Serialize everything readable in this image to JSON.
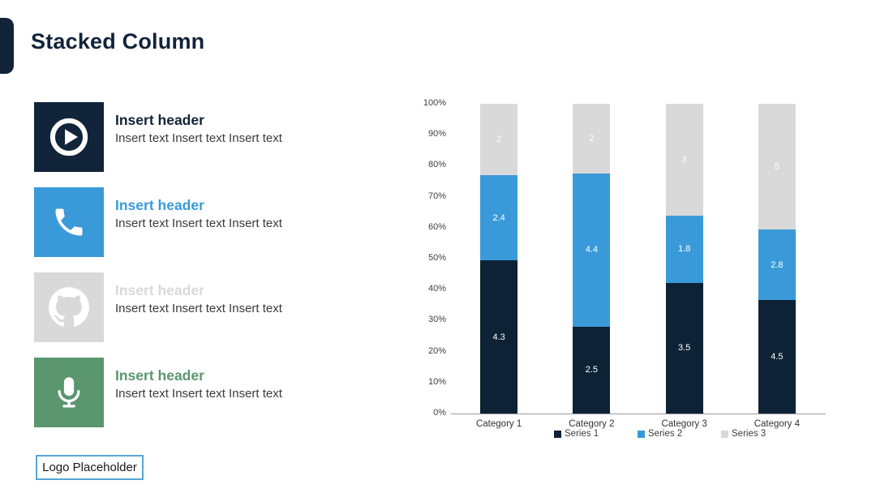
{
  "page": {
    "title": "Stacked Column",
    "accent": "#11243A",
    "background": "#FFFFFF"
  },
  "features": {
    "items": [
      {
        "icon": "play-circle-icon",
        "accent": "#11243A",
        "header": "Insert header",
        "text": "Insert text Insert text Insert text"
      },
      {
        "icon": "phone-icon",
        "accent": "#3A9AD9",
        "header": "Insert header",
        "text": "Insert text Insert text Insert text"
      },
      {
        "icon": "github-icon",
        "accent": "#D9D9D9",
        "header": "Insert header",
        "text": "Insert text Insert text Insert text"
      },
      {
        "icon": "microphone-icon",
        "accent": "#5A966E",
        "header": "Insert header",
        "text": "Insert text Insert text Insert text"
      }
    ]
  },
  "logo": {
    "label": "Logo Placeholder",
    "border_color": "#58A6D6"
  },
  "chart_data": {
    "type": "bar",
    "stacked": true,
    "percent_stacked": true,
    "title": "",
    "xlabel": "",
    "ylabel": "",
    "categories": [
      "Category 1",
      "Category 2",
      "Category 3",
      "Category 4"
    ],
    "series": [
      {
        "name": "Series 1",
        "color": "#0E2235",
        "values": [
          4.3,
          2.5,
          3.5,
          4.5
        ]
      },
      {
        "name": "Series 2",
        "color": "#3A9AD9",
        "values": [
          2.4,
          4.4,
          1.8,
          2.8
        ]
      },
      {
        "name": "Series 3",
        "color": "#D9D9D9",
        "values": [
          2,
          2,
          3,
          5
        ]
      }
    ],
    "y_ticks": [
      "0%",
      "10%",
      "20%",
      "30%",
      "40%",
      "50%",
      "60%",
      "70%",
      "80%",
      "90%",
      "100%"
    ],
    "ylim": [
      0,
      1
    ],
    "gridlines": false,
    "legend_position": "bottom",
    "data_labels": true,
    "label_color": "#FFFFFF",
    "axis_line_color": "#9A9A9A"
  }
}
